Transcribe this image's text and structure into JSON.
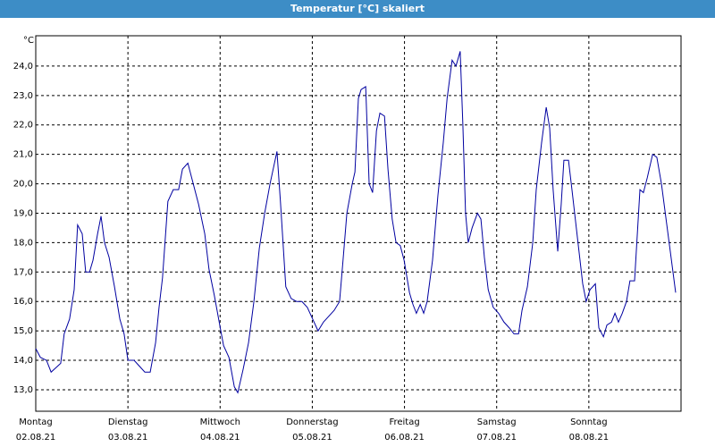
{
  "chart_data": {
    "type": "line",
    "title": "Temperatur [°C] skaliert",
    "y_label": "°C",
    "xlim": [
      0,
      168
    ],
    "ylim": [
      12.27,
      25.03
    ],
    "xticks": [
      {
        "value": 0,
        "label": "Montag"
      },
      {
        "value": 24,
        "label": "Dienstag"
      },
      {
        "value": 48,
        "label": "Mittwoch"
      },
      {
        "value": 72,
        "label": "Donnerstag"
      },
      {
        "value": 96,
        "label": "Freitag"
      },
      {
        "value": 120,
        "label": "Samstag"
      },
      {
        "value": 144,
        "label": "Sonntag"
      }
    ],
    "xtick_dates": [
      "02.08.21",
      "03.08.21",
      "04.08.21",
      "05.08.21",
      "06.08.21",
      "07.08.21",
      "08.08.21"
    ],
    "yticks": [
      {
        "value": 13,
        "label": "13,0"
      },
      {
        "value": 14,
        "label": "14,0"
      },
      {
        "value": 15,
        "label": "15,0"
      },
      {
        "value": 16,
        "label": "16,0"
      },
      {
        "value": 17,
        "label": "17,0"
      },
      {
        "value": 18,
        "label": "18,0"
      },
      {
        "value": 19,
        "label": "19,0"
      },
      {
        "value": 20,
        "label": "20,0"
      },
      {
        "value": 21,
        "label": "21,0"
      },
      {
        "value": 22,
        "label": "22,0"
      },
      {
        "value": 23,
        "label": "23,0"
      },
      {
        "value": 24,
        "label": "24,0"
      }
    ],
    "grid": true,
    "series": [
      {
        "color": "#0000a0",
        "x": [
          0,
          1.2,
          2.8,
          4.0,
          6.5,
          7.4,
          8.8,
          10.0,
          10.9,
          12.1,
          13.0,
          14.0,
          14.9,
          16.1,
          17.0,
          17.9,
          19.1,
          20.5,
          21.9,
          23.0,
          24.0,
          25.6,
          27.0,
          28.4,
          29.8,
          31.2,
          32.1,
          33.0,
          34.4,
          35.8,
          37.2,
          38.2,
          39.6,
          41.0,
          42.4,
          44.0,
          45.1,
          46.5,
          47.9,
          48.9,
          50.3,
          51.7,
          52.6,
          54.0,
          55.4,
          56.8,
          58.2,
          59.6,
          61.0,
          62.8,
          63.7,
          65.1,
          66.5,
          67.9,
          69.3,
          70.7,
          72.1,
          73.5,
          74.9,
          76.3,
          77.7,
          79.1,
          80.0,
          81.0,
          82.4,
          83.1,
          84.0,
          84.7,
          85.9,
          86.8,
          87.7,
          88.7,
          89.6,
          90.8,
          91.7,
          92.8,
          93.8,
          94.9,
          95.9,
          97.3,
          98.2,
          99.1,
          100.1,
          101.0,
          101.9,
          103.3,
          104.7,
          106.1,
          107.1,
          108.4,
          109.4,
          110.5,
          111.2,
          111.9,
          112.6,
          113.6,
          115.0,
          115.9,
          116.8,
          117.8,
          119.1,
          120.5,
          121.9,
          123.3,
          124.5,
          125.7,
          126.6,
          128.0,
          129.4,
          130.3,
          131.7,
          132.9,
          133.8,
          134.7,
          135.9,
          136.8,
          137.5,
          138.7,
          139.6,
          141.0,
          142.4,
          143.3,
          144.3,
          145.7,
          146.6,
          147.8,
          148.7,
          149.9,
          150.8,
          151.7,
          152.7,
          153.8,
          154.7,
          155.9,
          157.3,
          158.2,
          159.2,
          160.6,
          161.7,
          162.9,
          164.3,
          165.4,
          166.6
        ],
        "values": [
          14.4,
          14.1,
          14.0,
          13.6,
          13.9,
          14.9,
          15.4,
          16.4,
          18.6,
          18.3,
          17.0,
          17.0,
          17.4,
          18.3,
          18.9,
          18.0,
          17.5,
          16.5,
          15.4,
          14.9,
          14.0,
          14.0,
          13.8,
          13.6,
          13.6,
          14.6,
          15.8,
          16.8,
          19.4,
          19.8,
          19.8,
          20.5,
          20.7,
          20.0,
          19.3,
          18.3,
          17.1,
          16.2,
          15.2,
          14.5,
          14.1,
          13.1,
          12.9,
          13.7,
          14.6,
          16.0,
          17.8,
          19.0,
          20.0,
          21.1,
          19.4,
          16.5,
          16.1,
          16.0,
          16.0,
          15.8,
          15.4,
          15.0,
          15.3,
          15.5,
          15.7,
          16.0,
          17.4,
          19.0,
          20.0,
          20.4,
          22.9,
          23.2,
          23.3,
          20.0,
          19.7,
          21.8,
          22.4,
          22.3,
          20.5,
          18.8,
          18.0,
          17.9,
          17.4,
          16.3,
          15.9,
          15.6,
          15.9,
          15.6,
          16.0,
          17.4,
          19.6,
          21.4,
          22.9,
          24.2,
          24.0,
          24.5,
          22.0,
          19.0,
          18.0,
          18.5,
          19.0,
          18.8,
          17.5,
          16.4,
          15.8,
          15.6,
          15.3,
          15.1,
          14.9,
          14.9,
          15.7,
          16.5,
          18.0,
          19.8,
          21.4,
          22.6,
          21.9,
          19.8,
          17.7,
          19.3,
          20.8,
          20.8,
          19.8,
          18.2,
          16.6,
          16.0,
          16.4,
          16.6,
          15.1,
          14.8,
          15.2,
          15.3,
          15.6,
          15.3,
          15.6,
          16.0,
          16.7,
          16.7,
          19.8,
          19.7,
          20.2,
          21.0,
          20.9,
          20.0,
          18.6,
          17.5,
          16.3
        ]
      }
    ]
  }
}
